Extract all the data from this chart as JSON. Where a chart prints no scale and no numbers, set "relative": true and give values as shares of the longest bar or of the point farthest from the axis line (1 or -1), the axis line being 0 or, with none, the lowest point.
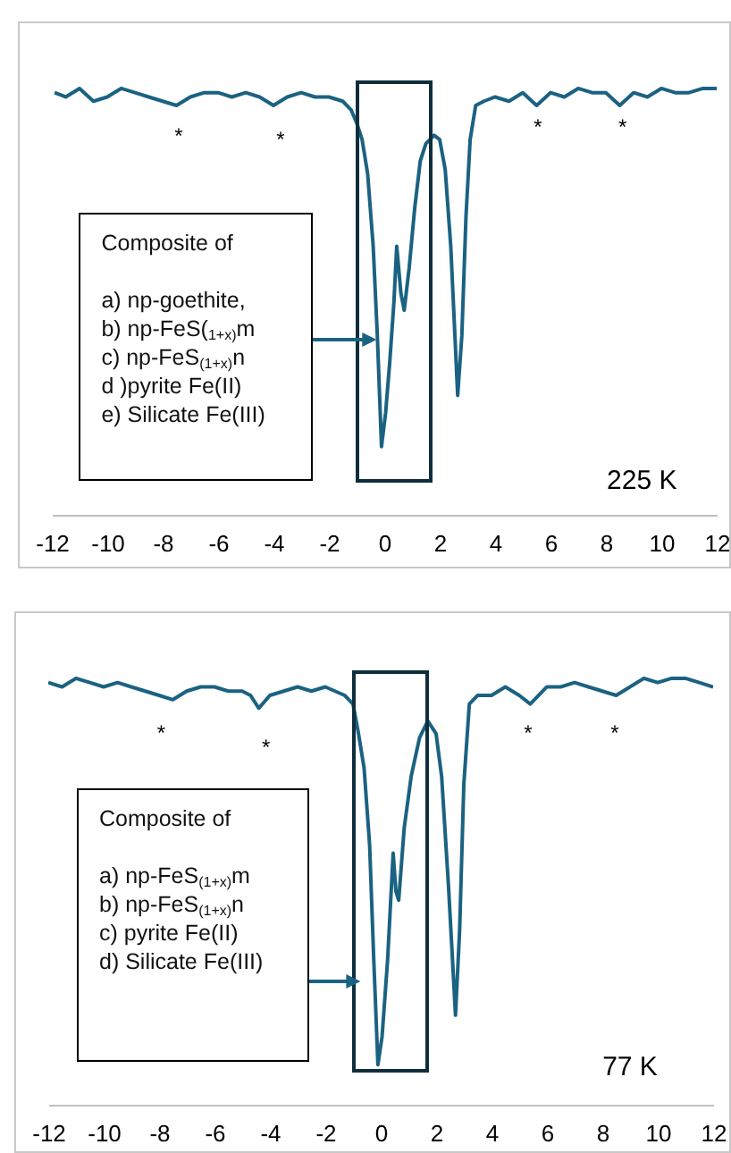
{
  "chart_data": [
    {
      "type": "line",
      "relative": true,
      "xlim": [
        -12,
        12
      ],
      "xticks": [
        -12,
        -10,
        -8,
        -6,
        -4,
        -2,
        0,
        2,
        4,
        6,
        8,
        10,
        12
      ],
      "x": [
        -11.9,
        -11.5,
        -11,
        -10.5,
        -10,
        -9.5,
        -9,
        -8.5,
        -8,
        -7.5,
        -7,
        -6.5,
        -6,
        -5.5,
        -5,
        -4.5,
        -4,
        -3.5,
        -3,
        -2.5,
        -2,
        -1.5,
        -1.2,
        -1,
        -0.8,
        -0.6,
        -0.4,
        -0.25,
        -0.1,
        0.05,
        0.2,
        0.35,
        0.45,
        0.6,
        0.72,
        0.9,
        1.1,
        1.3,
        1.5,
        1.8,
        2.0,
        2.2,
        2.4,
        2.55,
        2.65,
        2.8,
        2.95,
        3.1,
        3.3,
        3.6,
        4,
        4.5,
        5,
        5.5,
        6,
        6.5,
        7,
        7.5,
        8,
        8.5,
        9,
        9.5,
        10,
        10.5,
        11,
        11.5,
        12
      ],
      "series": [
        {
          "color": "#1b6282",
          "values": [
            0.99,
            0.98,
            1.0,
            0.97,
            0.98,
            1.0,
            0.99,
            0.98,
            0.97,
            0.96,
            0.98,
            0.99,
            0.99,
            0.98,
            0.99,
            0.98,
            0.96,
            0.98,
            0.99,
            0.98,
            0.98,
            0.97,
            0.95,
            0.92,
            0.88,
            0.8,
            0.63,
            0.42,
            0.16,
            0.24,
            0.36,
            0.5,
            0.63,
            0.52,
            0.48,
            0.58,
            0.72,
            0.83,
            0.87,
            0.89,
            0.88,
            0.81,
            0.63,
            0.42,
            0.28,
            0.42,
            0.7,
            0.88,
            0.96,
            0.97,
            0.98,
            0.97,
            0.99,
            0.96,
            0.99,
            0.98,
            1.0,
            0.99,
            0.99,
            0.96,
            0.99,
            0.98,
            1.0,
            0.99,
            0.99,
            1.0,
            1.0
          ]
        }
      ],
      "annotations": [
        "Composite of",
        "a) np-goethite,",
        "b) np-FeS($_{1+x)}$m",
        "c) np-FeS$_{(1+x)}$n",
        "d )pyrite Fe(II)",
        "e) Silicate Fe(III)",
        "*",
        "*",
        "*",
        "*",
        "225 K"
      ]
    },
    {
      "type": "line",
      "relative": true,
      "xlim": [
        -12,
        12
      ],
      "xticks": [
        -12,
        -10,
        -8,
        -6,
        -4,
        -2,
        0,
        2,
        4,
        6,
        8,
        10,
        12
      ],
      "x": [
        -12,
        -11.5,
        -11,
        -10.5,
        -10,
        -9.5,
        -9,
        -8.5,
        -8,
        -7.5,
        -7,
        -6.5,
        -6,
        -5.5,
        -5,
        -4.7,
        -4.4,
        -4,
        -3.5,
        -3,
        -2.5,
        -2,
        -1.3,
        -1,
        -0.8,
        -0.6,
        -0.4,
        -0.25,
        -0.1,
        0.05,
        0.25,
        0.45,
        0.55,
        0.65,
        0.85,
        1.1,
        1.4,
        1.7,
        2.0,
        2.2,
        2.45,
        2.7,
        2.85,
        3.0,
        3.2,
        3.5,
        4,
        4.5,
        5,
        5.4,
        6,
        6.5,
        7,
        7.5,
        8,
        8.5,
        9,
        9.5,
        10,
        10.5,
        11,
        11.5,
        12
      ],
      "series": [
        {
          "color": "#1b6282",
          "values": [
            0.99,
            0.98,
            1.0,
            0.99,
            0.98,
            0.99,
            0.98,
            0.97,
            0.96,
            0.95,
            0.97,
            0.98,
            0.98,
            0.97,
            0.97,
            0.96,
            0.93,
            0.96,
            0.97,
            0.98,
            0.97,
            0.98,
            0.96,
            0.94,
            0.87,
            0.79,
            0.61,
            0.34,
            0.094,
            0.16,
            0.34,
            0.59,
            0.5,
            0.48,
            0.65,
            0.77,
            0.86,
            0.9,
            0.87,
            0.77,
            0.51,
            0.21,
            0.41,
            0.75,
            0.94,
            0.96,
            0.96,
            0.98,
            0.96,
            0.94,
            0.98,
            0.98,
            0.99,
            0.98,
            0.97,
            0.96,
            0.98,
            1.0,
            0.99,
            1.0,
            1.0,
            0.99,
            0.98
          ]
        }
      ],
      "annotations": [
        "Composite of",
        "a) np-FeS$_{(1+x)}$m",
        "b) np-FeS$_{(1+x)}$n",
        "c) pyrite Fe(II)",
        "d) Silicate Fe(III)",
        "*",
        "*",
        "*",
        "*",
        "77 K"
      ]
    }
  ]
}
